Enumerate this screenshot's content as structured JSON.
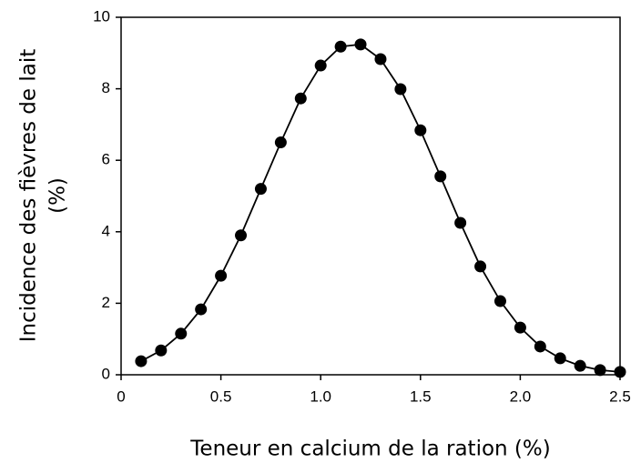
{
  "chart_data": {
    "type": "line",
    "xlabel": "Teneur en calcium de la ration (%)",
    "ylabel": [
      "Incidence des fièvres de lait",
      "(%)"
    ],
    "x": [
      0.1,
      0.2,
      0.3,
      0.4,
      0.5,
      0.6,
      0.7,
      0.8,
      0.9,
      1.0,
      1.1,
      1.2,
      1.3,
      1.4,
      1.5,
      1.6,
      1.7,
      1.8,
      1.9,
      2.0,
      2.1,
      2.2,
      2.3,
      2.4,
      2.5
    ],
    "series": [
      {
        "color": "#000000",
        "values": [
          0.38,
          0.68,
          1.15,
          1.83,
          2.77,
          3.9,
          5.2,
          6.5,
          7.73,
          8.65,
          9.18,
          9.24,
          8.83,
          7.99,
          6.84,
          5.55,
          4.25,
          3.03,
          2.06,
          1.32,
          0.79,
          0.46,
          0.25,
          0.13,
          0.08
        ]
      }
    ],
    "xlim": [
      0,
      2.5
    ],
    "xticks": [
      0,
      0.5,
      {
        "value": 1,
        "label": "1.0"
      },
      1.5,
      {
        "value": 2,
        "label": "2.0"
      },
      2.5
    ],
    "ylim": [
      0,
      10
    ],
    "yticks": [
      0,
      2,
      4,
      6,
      8,
      10
    ],
    "grid": false
  }
}
